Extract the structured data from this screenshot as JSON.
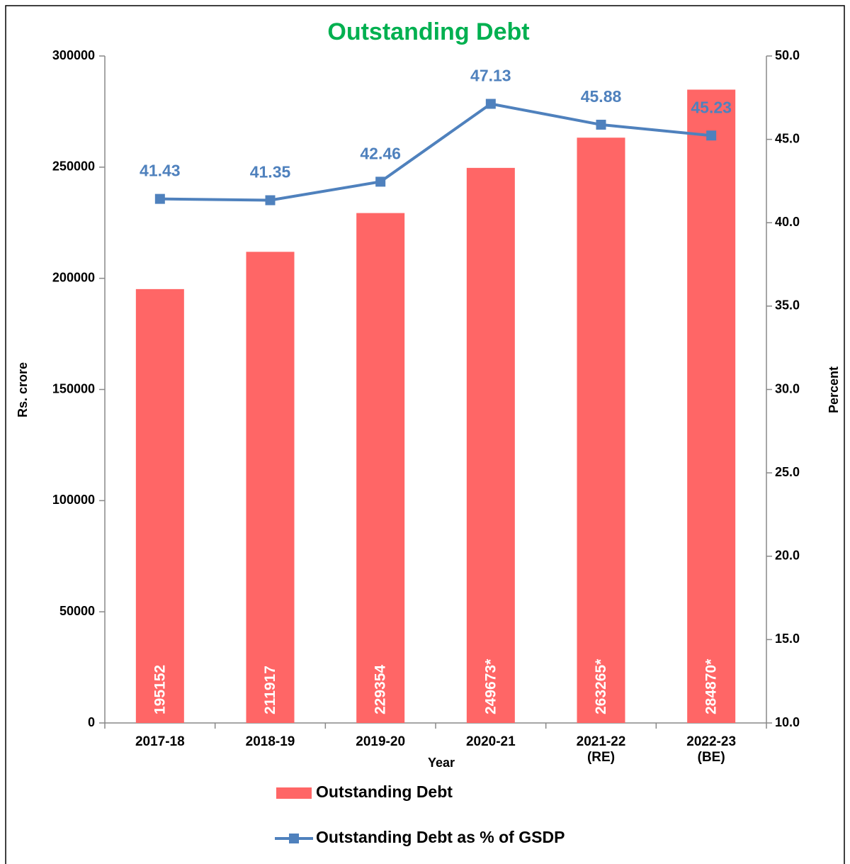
{
  "chart_data": {
    "type": "bar_line",
    "title": "Outstanding Debt",
    "xlabel": "Year",
    "ylabel": "Rs. crore",
    "y2label": "Percent",
    "categories": [
      "2017-18",
      "2018-19",
      "2019-20",
      "2020-21",
      "2021-22\n(RE)",
      "2022-23\n(BE)"
    ],
    "series": [
      {
        "name": "Outstanding Debt",
        "type": "bar",
        "color": "#ff6666",
        "axis": "y",
        "values": [
          195152,
          211917,
          229354,
          249673,
          263265,
          284870
        ],
        "value_labels": [
          "195152",
          "211917",
          "229354",
          "249673*",
          "263265*",
          "284870*"
        ]
      },
      {
        "name": "Outstanding Debt as % of GSDP",
        "type": "line",
        "color": "#4f81bd",
        "axis": "y2",
        "values": [
          41.43,
          41.35,
          42.46,
          47.13,
          45.88,
          45.23
        ]
      }
    ],
    "ylim": [
      0,
      300000
    ],
    "yticks": [
      0,
      50000,
      100000,
      150000,
      200000,
      250000,
      300000
    ],
    "y2lim": [
      10,
      50
    ],
    "y2ticks": [
      {
        "value": 10,
        "label": "10.0"
      },
      {
        "value": 15,
        "label": "15.0"
      },
      {
        "value": 20,
        "label": "20.0"
      },
      {
        "value": 25,
        "label": "25.0"
      },
      {
        "value": 30,
        "label": "30.0"
      },
      {
        "value": 35,
        "label": "35.0"
      },
      {
        "value": 40,
        "label": "40.0"
      },
      {
        "value": 45,
        "label": "45.0"
      },
      {
        "value": 50,
        "label": "50.0"
      }
    ],
    "grid": false,
    "legend": "bottom"
  }
}
